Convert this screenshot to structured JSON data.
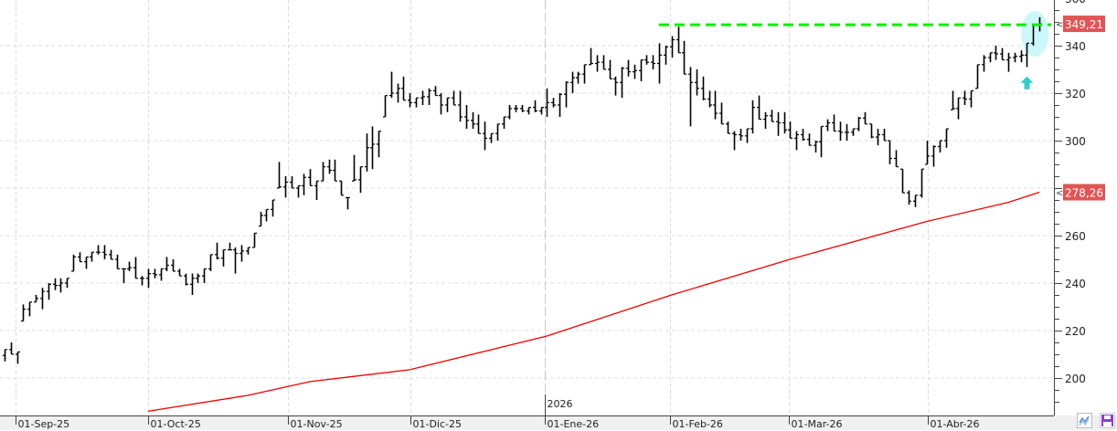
{
  "chart_data": {
    "type": "ohlc",
    "title": "",
    "y_axis": {
      "position": "right",
      "range": [
        186,
        360
      ],
      "major_step": 20,
      "minor_step": 5,
      "tick_labels": [
        "360",
        "340",
        "320",
        "300",
        "260",
        "240",
        "220",
        "200"
      ]
    },
    "x_axis": {
      "labels": [
        {
          "text": "01-Sep-25",
          "bar": 1.8
        },
        {
          "text": "01-Oct-25",
          "bar": 23.0
        },
        {
          "text": "01-Nov-25",
          "bar": 45.5
        },
        {
          "text": "01-Dic-25",
          "bar": 65.1
        },
        {
          "text": "01-Ene-26",
          "bar": 86.7
        },
        {
          "text": "01-Feb-26",
          "bar": 106.7
        },
        {
          "text": "01-Mar-26",
          "bar": 125.8
        },
        {
          "text": "01-Abr-26",
          "bar": 148.1
        }
      ],
      "year_marker": {
        "text": "2026",
        "bar": 86.7
      }
    },
    "bars_high_low": [
      [
        212,
        207
      ],
      [
        215,
        210
      ],
      [
        211,
        206
      ],
      [
        231,
        224
      ],
      [
        232,
        226
      ],
      [
        235,
        232
      ],
      [
        238,
        229
      ],
      [
        240,
        233
      ],
      [
        242,
        237
      ],
      [
        242,
        236
      ],
      [
        242,
        238
      ],
      [
        252,
        245
      ],
      [
        253,
        249
      ],
      [
        251,
        246
      ],
      [
        253,
        249
      ],
      [
        256,
        252
      ],
      [
        256,
        250
      ],
      [
        254,
        250
      ],
      [
        252,
        246
      ],
      [
        246,
        240
      ],
      [
        249,
        245
      ],
      [
        251,
        242
      ],
      [
        243,
        239
      ],
      [
        246,
        238
      ],
      [
        246,
        242
      ],
      [
        246,
        241
      ],
      [
        251,
        245
      ],
      [
        250,
        245
      ],
      [
        246,
        243
      ],
      [
        244,
        239
      ],
      [
        244,
        235
      ],
      [
        244,
        240
      ],
      [
        246,
        240
      ],
      [
        252,
        245
      ],
      [
        257,
        250
      ],
      [
        254,
        247
      ],
      [
        257,
        254
      ],
      [
        255,
        244
      ],
      [
        256,
        249
      ],
      [
        255,
        252
      ],
      [
        261,
        255
      ],
      [
        270,
        264
      ],
      [
        271,
        266
      ],
      [
        275,
        268
      ],
      [
        291,
        280
      ],
      [
        285,
        276
      ],
      [
        285,
        280
      ],
      [
        281,
        276
      ],
      [
        286,
        277
      ],
      [
        288,
        281
      ],
      [
        283,
        275
      ],
      [
        291,
        283
      ],
      [
        292,
        286
      ],
      [
        292,
        283
      ],
      [
        283,
        277
      ],
      [
        276,
        271
      ],
      [
        294,
        283
      ],
      [
        289,
        278
      ],
      [
        303,
        287
      ],
      [
        306,
        288
      ],
      [
        304,
        293
      ],
      [
        319,
        310
      ],
      [
        329,
        318
      ],
      [
        324,
        316
      ],
      [
        327,
        317
      ],
      [
        320,
        314
      ],
      [
        318,
        314
      ],
      [
        321,
        315
      ],
      [
        322,
        315
      ],
      [
        323,
        319
      ],
      [
        320,
        311
      ],
      [
        318,
        312
      ],
      [
        321,
        315
      ],
      [
        321,
        308
      ],
      [
        315,
        305
      ],
      [
        312,
        305
      ],
      [
        311,
        303
      ],
      [
        308,
        296
      ],
      [
        303,
        299
      ],
      [
        307,
        300
      ],
      [
        310,
        305
      ],
      [
        315,
        309
      ],
      [
        315,
        312
      ],
      [
        315,
        312
      ],
      [
        314,
        311
      ],
      [
        317,
        312
      ],
      [
        314,
        311
      ],
      [
        322,
        310
      ],
      [
        318,
        314
      ],
      [
        320,
        310
      ],
      [
        325,
        314
      ],
      [
        329,
        320
      ],
      [
        329,
        324
      ],
      [
        332,
        324
      ],
      [
        339,
        332
      ],
      [
        336,
        329
      ],
      [
        336,
        330
      ],
      [
        334,
        326
      ],
      [
        327,
        319
      ],
      [
        331,
        318
      ],
      [
        334,
        327
      ],
      [
        332,
        326
      ],
      [
        334,
        325
      ],
      [
        336,
        332
      ],
      [
        336,
        330
      ],
      [
        341,
        324
      ],
      [
        340,
        332
      ],
      [
        344,
        335
      ],
      [
        348,
        337
      ],
      [
        342,
        328
      ],
      [
        331,
        306
      ],
      [
        330,
        319
      ],
      [
        327,
        317
      ],
      [
        321,
        314
      ],
      [
        321,
        309
      ],
      [
        316,
        307
      ],
      [
        308,
        303
      ],
      [
        304,
        296
      ],
      [
        305,
        300
      ],
      [
        305,
        299
      ],
      [
        317,
        303
      ],
      [
        319,
        309
      ],
      [
        312,
        305
      ],
      [
        313,
        308
      ],
      [
        312,
        302
      ],
      [
        312,
        303
      ],
      [
        308,
        301
      ],
      [
        304,
        296
      ],
      [
        305,
        300
      ],
      [
        303,
        298
      ],
      [
        300,
        295
      ],
      [
        306,
        293
      ],
      [
        309,
        304
      ],
      [
        311,
        304
      ],
      [
        308,
        300
      ],
      [
        307,
        300
      ],
      [
        305,
        302
      ],
      [
        310,
        304
      ],
      [
        312,
        307
      ],
      [
        307,
        301
      ],
      [
        305,
        298
      ],
      [
        305,
        300
      ],
      [
        300,
        290
      ],
      [
        296,
        289
      ],
      [
        288,
        278
      ],
      [
        279,
        273
      ],
      [
        277,
        272
      ],
      [
        288,
        276
      ],
      [
        300,
        290
      ],
      [
        298,
        289
      ],
      [
        300,
        295
      ],
      [
        305,
        297
      ],
      [
        321,
        313
      ],
      [
        318,
        309
      ],
      [
        321,
        315
      ],
      [
        321,
        314
      ],
      [
        332,
        322
      ],
      [
        336,
        329
      ],
      [
        337,
        333
      ],
      [
        340,
        334
      ],
      [
        339,
        334
      ],
      [
        337,
        329
      ],
      [
        337,
        333
      ],
      [
        338,
        333
      ],
      [
        341,
        331
      ],
      [
        349,
        340
      ],
      [
        352,
        346
      ]
    ],
    "last_close": 349.21,
    "last_close_label": "349,21",
    "moving_average": {
      "color": "#ee0000",
      "points": [
        [
          23,
          186
        ],
        [
          39,
          192.7
        ],
        [
          49,
          198.5
        ],
        [
          65,
          203.5
        ],
        [
          87,
          217.7
        ],
        [
          107,
          235
        ],
        [
          126,
          250
        ],
        [
          148,
          266
        ],
        [
          161,
          274
        ],
        [
          166,
          278.26
        ]
      ],
      "last_value_label": "278,26"
    },
    "resistance_line": {
      "value": 349,
      "from_bar": 106,
      "color": "#00ee00"
    },
    "highlight": {
      "color": "#ccf8fb",
      "arrow_color": "#33cccc",
      "bars": [
        164,
        166
      ]
    },
    "price_label_color": "#e05555"
  }
}
